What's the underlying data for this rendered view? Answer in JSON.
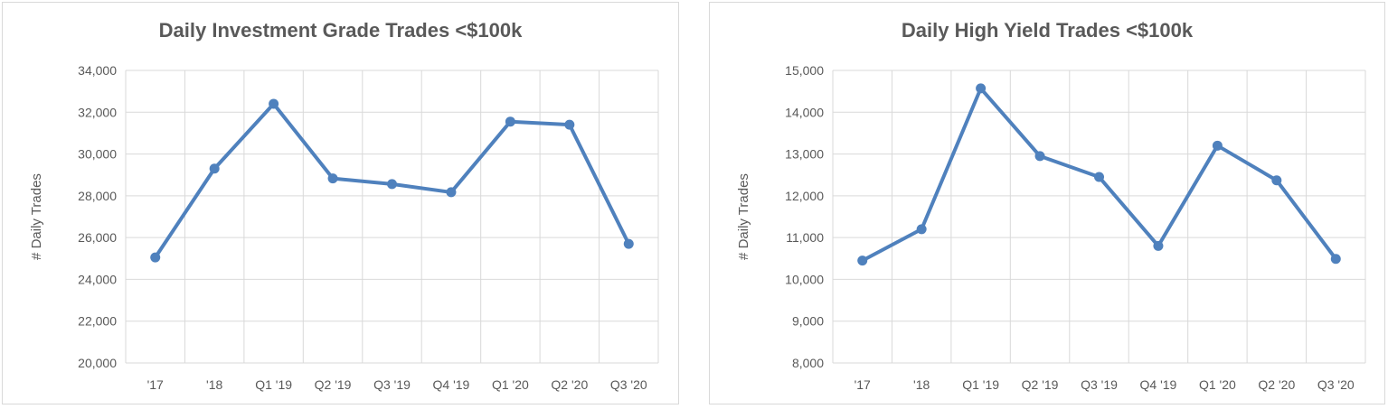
{
  "chart_data": [
    {
      "type": "line",
      "title": "Daily Investment Grade Trades <$100k",
      "xlabel": "",
      "ylabel": "# Daily Trades",
      "categories": [
        "'17",
        "'18",
        "Q1 '19",
        "Q2 '19",
        "Q3 '19",
        "Q4 '19",
        "Q1 '20",
        "Q2 '20",
        "Q3 '20"
      ],
      "series": [
        {
          "values": [
            25050,
            29300,
            32400,
            28830,
            28560,
            28170,
            31550,
            31400,
            25700
          ]
        }
      ],
      "ylim": [
        20000,
        34000
      ],
      "yticks": [
        20000,
        22000,
        24000,
        26000,
        28000,
        30000,
        32000,
        34000
      ],
      "ytick_labels": [
        "20,000",
        "22,000",
        "24,000",
        "26,000",
        "28,000",
        "30,000",
        "32,000",
        "34,000"
      ],
      "grid": true,
      "line_color": "#4f81bd"
    },
    {
      "type": "line",
      "title": "Daily High Yield Trades <$100k",
      "xlabel": "",
      "ylabel": "# Daily Trades",
      "categories": [
        "'17",
        "'18",
        "Q1 '19",
        "Q2 '19",
        "Q3 '19",
        "Q4 '19",
        "Q1 '20",
        "Q2 '20",
        "Q3 '20"
      ],
      "series": [
        {
          "values": [
            10450,
            11200,
            14570,
            12950,
            12450,
            10800,
            13200,
            12370,
            10490
          ]
        }
      ],
      "ylim": [
        8000,
        15000
      ],
      "yticks": [
        8000,
        9000,
        10000,
        11000,
        12000,
        13000,
        14000,
        15000
      ],
      "ytick_labels": [
        "8,000",
        "9,000",
        "10,000",
        "11,000",
        "12,000",
        "13,000",
        "14,000",
        "15,000"
      ],
      "grid": true,
      "line_color": "#4f81bd"
    }
  ]
}
